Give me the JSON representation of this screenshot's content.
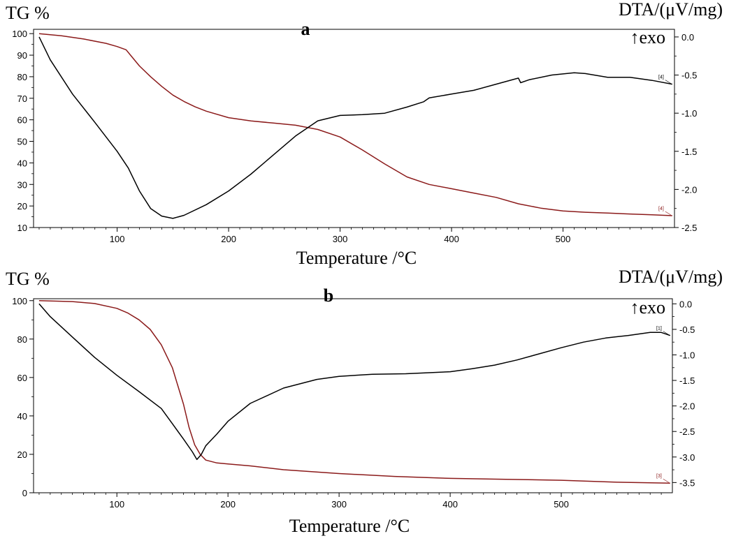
{
  "chart_data": [
    {
      "type": "line",
      "panel_label": "a",
      "ylabel_left": "TG %",
      "ylabel_right": "DTA/(μV/mg)",
      "exo_label": "↑exo",
      "xlabel": "Temperature /°C",
      "xlim": [
        25,
        600
      ],
      "ylim_left": [
        10,
        102
      ],
      "ylim_right": [
        -2.5,
        0.1
      ],
      "xticks": [
        100,
        200,
        300,
        400,
        500
      ],
      "yticks_left": [
        10,
        20,
        30,
        40,
        50,
        60,
        70,
        80,
        90,
        100
      ],
      "yticks_right": [
        0.0,
        -0.5,
        -1.0,
        -1.5,
        -2.0,
        -2.5
      ],
      "yticks_right_labels": [
        "0.0",
        "-0.5",
        "-1.0",
        "-1.5",
        "-2.0",
        "-2.5"
      ],
      "colors": {
        "tg": "#8b1a1a",
        "dta": "#000000"
      },
      "series": [
        {
          "axis": "left",
          "color": "#8b1a1a",
          "end_label": "[4]",
          "x": [
            30,
            50,
            70,
            90,
            100,
            108,
            112,
            120,
            130,
            140,
            150,
            160,
            170,
            180,
            200,
            220,
            240,
            260,
            280,
            300,
            320,
            340,
            360,
            380,
            400,
            420,
            440,
            460,
            480,
            500,
            520,
            540,
            560,
            580,
            598
          ],
          "y": [
            100,
            99,
            97.5,
            95.5,
            94,
            92.5,
            90,
            85,
            80,
            75.5,
            71.5,
            68.5,
            66,
            64,
            61,
            59.5,
            58.5,
            57.5,
            55.5,
            52,
            46,
            39.5,
            33.5,
            30,
            28,
            26,
            24,
            21,
            19,
            17.7,
            17.1,
            16.7,
            16.3,
            15.9,
            15.5
          ]
        },
        {
          "axis": "right",
          "color": "#000000",
          "end_label": "[4]",
          "x": [
            30,
            40,
            60,
            80,
            100,
            110,
            120,
            130,
            140,
            150,
            160,
            180,
            200,
            220,
            240,
            260,
            280,
            300,
            320,
            340,
            360,
            375,
            380,
            400,
            420,
            440,
            460,
            462,
            470,
            490,
            510,
            520,
            540,
            560,
            580,
            598
          ],
          "y": [
            0.0,
            -0.3,
            -0.75,
            -1.12,
            -1.5,
            -1.72,
            -2.02,
            -2.25,
            -2.35,
            -2.38,
            -2.34,
            -2.2,
            -2.02,
            -1.8,
            -1.55,
            -1.3,
            -1.1,
            -1.03,
            -1.02,
            -1.0,
            -0.92,
            -0.85,
            -0.8,
            -0.75,
            -0.7,
            -0.62,
            -0.54,
            -0.6,
            -0.56,
            -0.5,
            -0.47,
            -0.48,
            -0.53,
            -0.53,
            -0.57,
            -0.62
          ]
        }
      ]
    },
    {
      "type": "line",
      "panel_label": "b",
      "ylabel_left": "TG %",
      "ylabel_right": "DTA/(μV/mg)",
      "exo_label": "↑exo",
      "xlabel": "Temperature /°C",
      "xlim": [
        25,
        600
      ],
      "ylim_left": [
        0,
        101
      ],
      "ylim_right": [
        -3.7,
        0.1
      ],
      "xticks": [
        100,
        200,
        300,
        400,
        500
      ],
      "yticks_left": [
        0,
        20,
        40,
        60,
        80,
        100
      ],
      "yticks_right": [
        0.0,
        -0.5,
        -1.0,
        -1.5,
        -2.0,
        -2.5,
        -3.0,
        -3.5
      ],
      "yticks_right_labels": [
        "0.0",
        "-0.5",
        "-1.0",
        "-1.5",
        "-2.0",
        "-2.5",
        "-3.0",
        "-3.5"
      ],
      "colors": {
        "tg": "#8b1a1a",
        "dta": "#000000"
      },
      "series": [
        {
          "axis": "left",
          "color": "#8b1a1a",
          "end_label": "[3]",
          "x": [
            30,
            60,
            80,
            100,
            110,
            120,
            130,
            140,
            150,
            160,
            165,
            170,
            175,
            180,
            190,
            200,
            220,
            250,
            300,
            350,
            400,
            450,
            500,
            550,
            598
          ],
          "y": [
            100,
            99.5,
            98.5,
            96,
            93.5,
            90,
            85,
            77,
            65,
            46,
            34,
            25,
            20,
            17,
            15.5,
            15,
            14,
            12,
            10,
            8.5,
            7.5,
            7,
            6.5,
            5.5,
            5
          ]
        },
        {
          "axis": "right",
          "color": "#000000",
          "end_label": "[1]",
          "x": [
            30,
            40,
            60,
            80,
            100,
            120,
            140,
            150,
            160,
            168,
            172,
            176,
            180,
            190,
            200,
            220,
            250,
            280,
            300,
            330,
            360,
            400,
            420,
            440,
            460,
            480,
            500,
            520,
            540,
            560,
            580,
            590,
            598
          ],
          "y": [
            0.0,
            -0.25,
            -0.65,
            -1.05,
            -1.4,
            -1.72,
            -2.05,
            -2.35,
            -2.65,
            -2.9,
            -3.05,
            -2.95,
            -2.78,
            -2.55,
            -2.3,
            -1.95,
            -1.65,
            -1.48,
            -1.42,
            -1.38,
            -1.37,
            -1.33,
            -1.27,
            -1.2,
            -1.1,
            -0.98,
            -0.86,
            -0.75,
            -0.67,
            -0.62,
            -0.56,
            -0.56,
            -0.62
          ]
        }
      ]
    }
  ]
}
